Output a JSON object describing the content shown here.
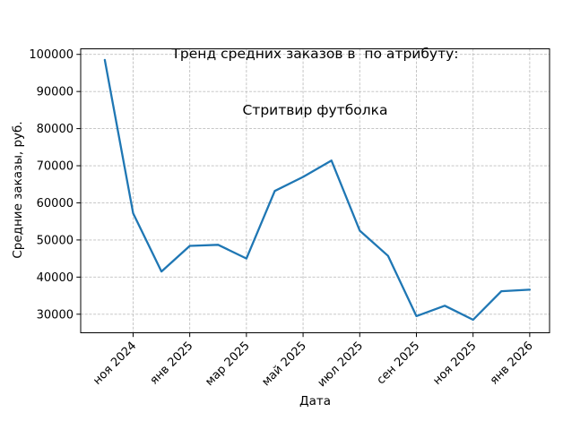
{
  "title": {
    "line1": "Тренд средних заказов в  по атрибуту:",
    "line2": "Стритвир футболка"
  },
  "chart_data": {
    "type": "line",
    "title": "Тренд средних заказов в  по атрибуту:\nСтритвир футболка",
    "xlabel": "Дата",
    "ylabel": "Средние заказы, руб.",
    "x": [
      "окт 2024",
      "ноя 2024",
      "дек 2024",
      "янв 2025",
      "фев 2025",
      "мар 2025",
      "апр 2025",
      "май 2025",
      "июн 2025",
      "июл 2025",
      "авг 2025",
      "сен 2025",
      "окт 2025",
      "ноя 2025",
      "дек 2025",
      "янв 2026"
    ],
    "values": [
      98500,
      57200,
      41500,
      48400,
      48700,
      45000,
      63200,
      67000,
      71400,
      52500,
      45700,
      29500,
      32300,
      28500,
      36200,
      36600
    ],
    "x_tick_labels": [
      "ноя 2024",
      "янв 2025",
      "мар 2025",
      "май 2025",
      "июл 2025",
      "сен 2025",
      "ноя 2025",
      "янв 2026"
    ],
    "y_ticks": [
      30000,
      40000,
      50000,
      60000,
      70000,
      80000,
      90000,
      100000
    ],
    "ylim": [
      25000,
      101500
    ],
    "grid": true,
    "legend": "none",
    "line_color": "#1f77b4",
    "grid_color": "#b0b0b0",
    "x_tick_rotation_deg": 45
  }
}
